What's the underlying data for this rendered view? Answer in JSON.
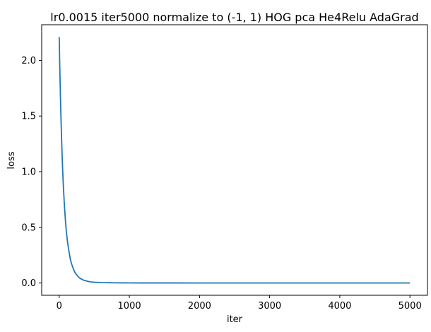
{
  "chart_data": {
    "type": "line",
    "title": "lr0.0015 iter5000 normalize to (-1, 1) HOG pca He4Relu AdaGrad",
    "xlabel": "iter",
    "ylabel": "loss",
    "xlim": [
      -250,
      5250
    ],
    "ylim": [
      -0.11,
      2.32
    ],
    "xticks": [
      0,
      1000,
      2000,
      3000,
      4000,
      5000
    ],
    "xtick_labels": [
      "0",
      "1000",
      "2000",
      "3000",
      "4000",
      "5000"
    ],
    "yticks": [
      0.0,
      0.5,
      1.0,
      1.5,
      2.0
    ],
    "ytick_labels": [
      "0.0",
      "0.5",
      "1.0",
      "1.5",
      "2.0"
    ],
    "grid": false,
    "series": [
      {
        "color": "#1f77b4",
        "x": [
          0,
          10,
          20,
          30,
          40,
          50,
          60,
          70,
          80,
          90,
          100,
          120,
          140,
          160,
          180,
          200,
          220,
          240,
          260,
          280,
          300,
          350,
          400,
          450,
          500,
          600,
          700,
          800,
          900,
          1000,
          1200,
          1500,
          2000,
          2500,
          3000,
          3500,
          4000,
          4500,
          5000
        ],
        "y": [
          2.21,
          1.88,
          1.6,
          1.37,
          1.17,
          1.0,
          0.86,
          0.74,
          0.64,
          0.55,
          0.47,
          0.36,
          0.28,
          0.21,
          0.165,
          0.13,
          0.1,
          0.08,
          0.064,
          0.051,
          0.041,
          0.025,
          0.016,
          0.01,
          0.007,
          0.004,
          0.003,
          0.002,
          0.0015,
          0.001,
          0.0008,
          0.0006,
          0.0004,
          0.0003,
          0.0002,
          0.0002,
          0.0001,
          0.0001,
          0.0001
        ]
      }
    ]
  }
}
